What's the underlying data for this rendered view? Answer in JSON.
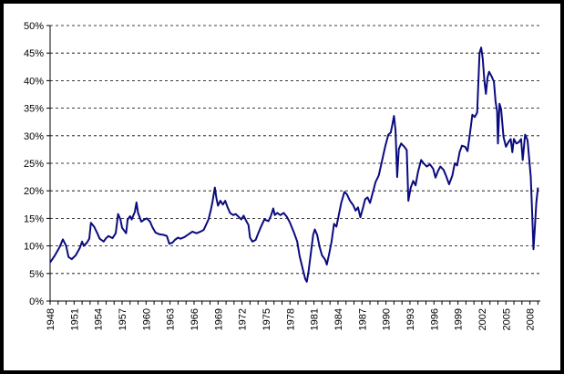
{
  "chart_data": {
    "type": "line",
    "title": "",
    "xlabel": "",
    "ylabel": "",
    "ylim": [
      0,
      50
    ],
    "yticks": [
      "0%",
      "5%",
      "10%",
      "15%",
      "20%",
      "25%",
      "30%",
      "35%",
      "40%",
      "45%",
      "50%"
    ],
    "xlim": [
      1948,
      2009.3
    ],
    "xticks": [
      "1948",
      "1951",
      "1954",
      "1957",
      "1960",
      "1963",
      "1966",
      "1969",
      "1972",
      "1975",
      "1978",
      "1981",
      "1984",
      "1987",
      "1990",
      "1993",
      "1996",
      "1999",
      "2002",
      "2005",
      "2008"
    ],
    "grid": true,
    "legend": "none",
    "line_color": "#0b0b80",
    "series": [
      {
        "name": "",
        "points": [
          [
            1948.0,
            7.0
          ],
          [
            1948.6,
            8.3
          ],
          [
            1949.2,
            9.8
          ],
          [
            1949.6,
            11.2
          ],
          [
            1950.0,
            10.0
          ],
          [
            1950.3,
            8.0
          ],
          [
            1950.7,
            7.6
          ],
          [
            1951.2,
            8.3
          ],
          [
            1951.7,
            9.6
          ],
          [
            1952.0,
            10.8
          ],
          [
            1952.2,
            10.0
          ],
          [
            1952.6,
            10.6
          ],
          [
            1952.9,
            11.3
          ],
          [
            1953.1,
            14.2
          ],
          [
            1953.5,
            13.5
          ],
          [
            1953.9,
            12.3
          ],
          [
            1954.2,
            11.3
          ],
          [
            1954.7,
            10.8
          ],
          [
            1955.0,
            11.4
          ],
          [
            1955.3,
            11.8
          ],
          [
            1955.8,
            11.4
          ],
          [
            1956.2,
            12.3
          ],
          [
            1956.5,
            15.8
          ],
          [
            1956.8,
            14.8
          ],
          [
            1957.0,
            13.3
          ],
          [
            1957.5,
            12.3
          ],
          [
            1957.7,
            14.8
          ],
          [
            1958.0,
            15.4
          ],
          [
            1958.2,
            14.8
          ],
          [
            1958.6,
            16.2
          ],
          [
            1958.8,
            17.9
          ],
          [
            1959.0,
            16.0
          ],
          [
            1959.4,
            14.4
          ],
          [
            1959.8,
            14.8
          ],
          [
            1960.1,
            15.0
          ],
          [
            1960.5,
            14.4
          ],
          [
            1960.8,
            13.4
          ],
          [
            1961.2,
            12.4
          ],
          [
            1961.7,
            12.1
          ],
          [
            1962.2,
            12.0
          ],
          [
            1962.6,
            11.8
          ],
          [
            1962.9,
            10.4
          ],
          [
            1963.3,
            10.6
          ],
          [
            1963.6,
            11.1
          ],
          [
            1964.0,
            11.5
          ],
          [
            1964.3,
            11.3
          ],
          [
            1964.8,
            11.6
          ],
          [
            1965.3,
            12.1
          ],
          [
            1965.8,
            12.6
          ],
          [
            1966.3,
            12.3
          ],
          [
            1966.8,
            12.6
          ],
          [
            1967.2,
            12.9
          ],
          [
            1967.5,
            13.8
          ],
          [
            1967.8,
            14.8
          ],
          [
            1968.1,
            16.5
          ],
          [
            1968.3,
            18.0
          ],
          [
            1968.6,
            20.6
          ],
          [
            1968.8,
            18.6
          ],
          [
            1969.0,
            17.3
          ],
          [
            1969.3,
            18.2
          ],
          [
            1969.6,
            17.5
          ],
          [
            1969.9,
            18.2
          ],
          [
            1970.2,
            17.0
          ],
          [
            1970.5,
            16.0
          ],
          [
            1970.9,
            15.6
          ],
          [
            1971.2,
            15.8
          ],
          [
            1971.5,
            15.4
          ],
          [
            1971.9,
            14.8
          ],
          [
            1972.2,
            15.5
          ],
          [
            1972.5,
            14.6
          ],
          [
            1972.8,
            13.8
          ],
          [
            1973.0,
            11.5
          ],
          [
            1973.3,
            10.8
          ],
          [
            1973.7,
            11.1
          ],
          [
            1974.0,
            12.2
          ],
          [
            1974.4,
            13.6
          ],
          [
            1974.8,
            14.8
          ],
          [
            1975.3,
            14.5
          ],
          [
            1975.6,
            15.4
          ],
          [
            1975.9,
            16.8
          ],
          [
            1976.1,
            15.6
          ],
          [
            1976.4,
            16.0
          ],
          [
            1976.8,
            15.6
          ],
          [
            1977.2,
            16.0
          ],
          [
            1977.6,
            15.3
          ],
          [
            1978.0,
            14.2
          ],
          [
            1978.5,
            12.4
          ],
          [
            1978.9,
            10.8
          ],
          [
            1979.2,
            8.2
          ],
          [
            1979.6,
            5.8
          ],
          [
            1979.9,
            4.0
          ],
          [
            1980.1,
            3.5
          ],
          [
            1980.3,
            5.2
          ],
          [
            1980.6,
            8.6
          ],
          [
            1980.9,
            12.0
          ],
          [
            1981.1,
            13.0
          ],
          [
            1981.4,
            12.0
          ],
          [
            1981.7,
            9.8
          ],
          [
            1982.0,
            8.3
          ],
          [
            1982.4,
            7.5
          ],
          [
            1982.6,
            6.6
          ],
          [
            1982.9,
            8.6
          ],
          [
            1983.2,
            10.8
          ],
          [
            1983.5,
            14.0
          ],
          [
            1983.8,
            13.5
          ],
          [
            1984.1,
            15.6
          ],
          [
            1984.4,
            17.8
          ],
          [
            1984.8,
            19.8
          ],
          [
            1985.1,
            19.4
          ],
          [
            1985.5,
            18.2
          ],
          [
            1985.9,
            17.4
          ],
          [
            1986.2,
            16.4
          ],
          [
            1986.5,
            17.0
          ],
          [
            1986.8,
            15.2
          ],
          [
            1987.1,
            16.8
          ],
          [
            1987.4,
            18.5
          ],
          [
            1987.7,
            18.8
          ],
          [
            1988.0,
            17.8
          ],
          [
            1988.3,
            19.4
          ],
          [
            1988.7,
            21.6
          ],
          [
            1989.1,
            22.8
          ],
          [
            1989.5,
            25.4
          ],
          [
            1989.9,
            28.0
          ],
          [
            1990.3,
            30.2
          ],
          [
            1990.6,
            30.6
          ],
          [
            1990.8,
            32.0
          ],
          [
            1991.0,
            33.6
          ],
          [
            1991.2,
            31.0
          ],
          [
            1991.4,
            22.5
          ],
          [
            1991.6,
            27.6
          ],
          [
            1991.9,
            28.6
          ],
          [
            1992.3,
            28.0
          ],
          [
            1992.6,
            27.4
          ],
          [
            1992.8,
            18.2
          ],
          [
            1993.1,
            20.6
          ],
          [
            1993.4,
            21.8
          ],
          [
            1993.7,
            21.0
          ],
          [
            1994.0,
            23.4
          ],
          [
            1994.4,
            25.6
          ],
          [
            1994.7,
            25.0
          ],
          [
            1995.1,
            24.4
          ],
          [
            1995.5,
            24.8
          ],
          [
            1995.9,
            24.0
          ],
          [
            1996.2,
            22.4
          ],
          [
            1996.5,
            23.6
          ],
          [
            1996.8,
            24.4
          ],
          [
            1997.2,
            23.8
          ],
          [
            1997.5,
            22.8
          ],
          [
            1997.9,
            21.2
          ],
          [
            1998.3,
            22.8
          ],
          [
            1998.6,
            25.0
          ],
          [
            1998.9,
            24.6
          ],
          [
            1999.2,
            27.0
          ],
          [
            1999.5,
            28.2
          ],
          [
            1999.9,
            28.0
          ],
          [
            2000.2,
            27.2
          ],
          [
            2000.5,
            30.4
          ],
          [
            2000.8,
            33.8
          ],
          [
            2001.1,
            33.4
          ],
          [
            2001.4,
            34.2
          ],
          [
            2001.7,
            45.0
          ],
          [
            2001.9,
            46.0
          ],
          [
            2002.1,
            44.0
          ],
          [
            2002.3,
            40.0
          ],
          [
            2002.5,
            37.6
          ],
          [
            2002.7,
            40.6
          ],
          [
            2002.9,
            41.6
          ],
          [
            2003.2,
            40.8
          ],
          [
            2003.5,
            39.8
          ],
          [
            2003.7,
            36.2
          ],
          [
            2003.9,
            34.4
          ],
          [
            2004.0,
            28.6
          ],
          [
            2004.2,
            35.8
          ],
          [
            2004.4,
            34.8
          ],
          [
            2004.7,
            29.8
          ],
          [
            2005.0,
            28.0
          ],
          [
            2005.3,
            28.8
          ],
          [
            2005.6,
            29.4
          ],
          [
            2005.8,
            27.0
          ],
          [
            2006.0,
            29.4
          ],
          [
            2006.3,
            28.6
          ],
          [
            2006.6,
            28.8
          ],
          [
            2006.9,
            29.4
          ],
          [
            2007.1,
            25.6
          ],
          [
            2007.4,
            30.2
          ],
          [
            2007.7,
            29.2
          ],
          [
            2007.9,
            26.0
          ],
          [
            2008.1,
            22.6
          ],
          [
            2008.3,
            15.4
          ],
          [
            2008.45,
            9.4
          ],
          [
            2008.6,
            13.0
          ],
          [
            2008.8,
            17.8
          ],
          [
            2009.0,
            20.6
          ]
        ]
      }
    ]
  }
}
